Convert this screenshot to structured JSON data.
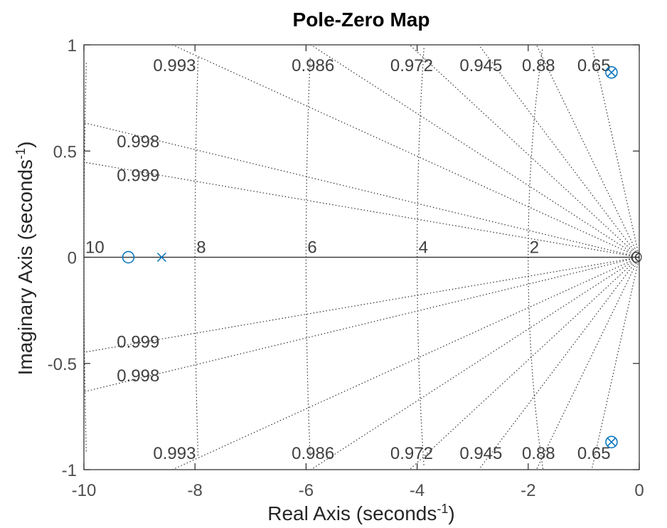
{
  "chart_data": {
    "type": "scatter",
    "title": "Pole-Zero Map",
    "xlabel": "Real  Axis  (seconds",
    "ylabel": "Imaginary  Axis  (seconds",
    "unit_exponent": "-1",
    "xlim": [
      -10,
      0
    ],
    "ylim": [
      -1,
      1
    ],
    "x_ticks": [
      -10,
      -8,
      -6,
      -4,
      -2,
      0
    ],
    "y_ticks": [
      -1,
      -0.5,
      0,
      0.5,
      1
    ],
    "x_tick_labels": [
      "-10",
      "-8",
      "-6",
      "-4",
      "-2",
      "0"
    ],
    "y_tick_labels": [
      "-1",
      "-0.5",
      "0",
      "0.5",
      "1"
    ],
    "grid": true,
    "damping_values": [
      0.65,
      0.88,
      0.945,
      0.972,
      0.986,
      0.993,
      0.998,
      0.999
    ],
    "damping_labels": [
      "0.65",
      "0.88",
      "0.945",
      "0.972",
      "0.986",
      "0.993",
      "0.998",
      "0.999"
    ],
    "natural_frequencies": [
      2,
      4,
      6,
      8,
      10
    ],
    "frequency_labels": [
      "2",
      "4",
      "6",
      "8",
      "10"
    ],
    "series_color": "#0072BD",
    "poles": [
      {
        "x": -8.6,
        "y": 0
      },
      {
        "x": -0.5,
        "y": 0.87
      },
      {
        "x": -0.5,
        "y": -0.87
      }
    ],
    "zeros": [
      {
        "x": -9.2,
        "y": 0
      },
      {
        "x": -0.5,
        "y": 0.87
      },
      {
        "x": -0.5,
        "y": -0.87
      }
    ]
  }
}
